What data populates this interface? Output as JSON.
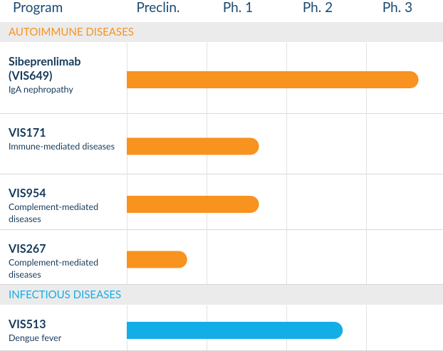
{
  "chart_data": {
    "type": "bar",
    "program_label": "Program",
    "categories": [
      "Preclin.",
      "Ph. 1",
      "Ph. 2",
      "Ph. 3"
    ],
    "xlim": [
      0,
      4
    ],
    "groups": [
      {
        "name": "AUTOIMMUNE DISEASES",
        "color": "#f7931e",
        "rows": [
          {
            "name": "Sibeprenlimab (VIS649)",
            "indication": "IgA nephropathy",
            "value": 3.55
          },
          {
            "name": "VIS171",
            "indication": "Immune-mediated diseases",
            "value": 1.55
          },
          {
            "name": "VIS954",
            "indication": "Complement-mediated diseases",
            "value": 1.55
          },
          {
            "name": "VIS267",
            "indication": "Complement-mediated diseases",
            "value": 0.65
          }
        ]
      },
      {
        "name": "INFECTIOUS DISEASES",
        "color": "#13aee8",
        "rows": [
          {
            "name": "VIS513",
            "indication": "Dengue fever",
            "value": 2.6
          }
        ]
      }
    ]
  }
}
